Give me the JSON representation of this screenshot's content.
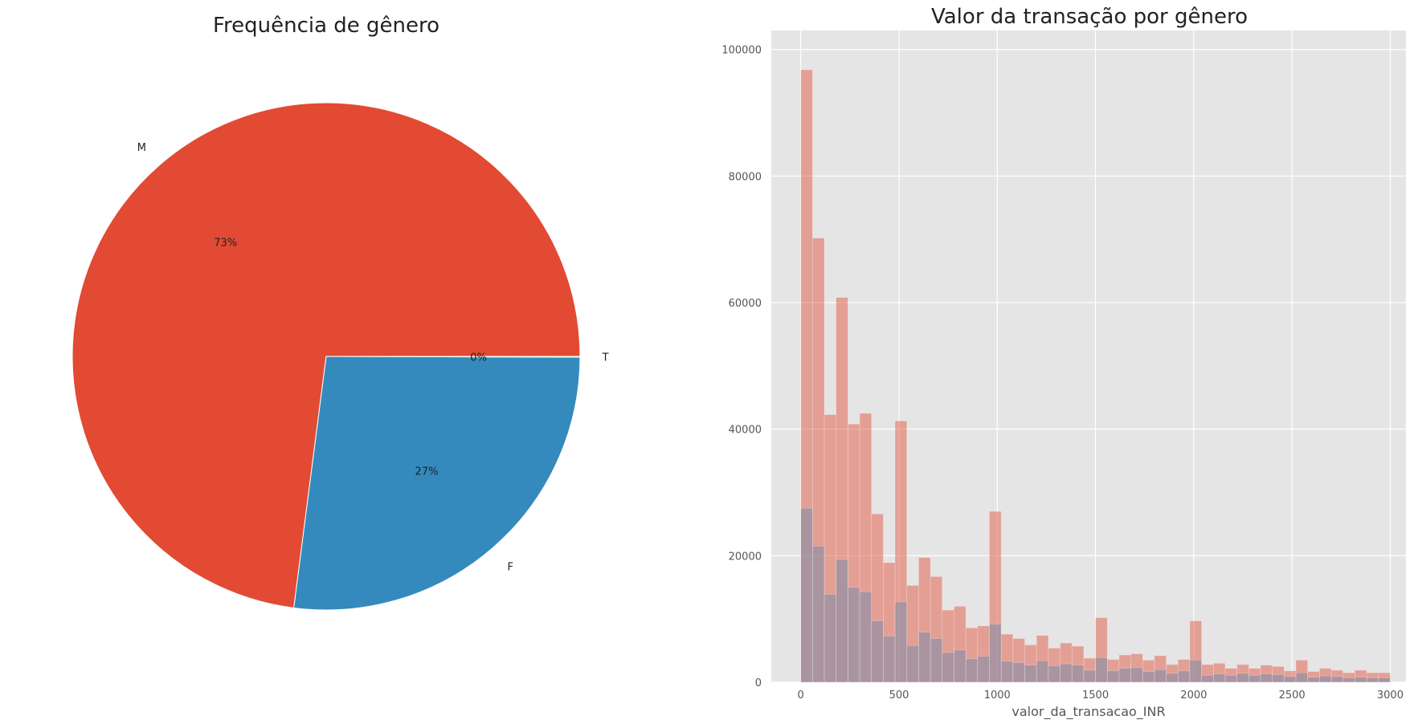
{
  "chart_data": [
    {
      "type": "pie",
      "title": "Frequência de gênero",
      "slices": [
        {
          "label": "M",
          "value": 73,
          "pct_label": "73%",
          "color": "#E24A33"
        },
        {
          "label": "F",
          "value": 27,
          "pct_label": "27%",
          "color": "#348ABD"
        },
        {
          "label": "T",
          "value": 0.05,
          "pct_label": "0%",
          "color": "#988ED5"
        }
      ]
    },
    {
      "type": "bar",
      "subtype": "histogram-overlay",
      "title": "Valor da transação por gênero",
      "xlabel": "valor_da_transacao_INR",
      "ylabel": "",
      "xlim": [
        -150,
        3080
      ],
      "ylim": [
        0,
        103000
      ],
      "xticks": [
        0,
        500,
        1000,
        1500,
        2000,
        2500,
        3000
      ],
      "yticks": [
        0,
        20000,
        40000,
        60000,
        80000,
        100000
      ],
      "grid": true,
      "bin_start": 0,
      "bin_width": 60,
      "series": [
        {
          "color": "#E24A33",
          "opacity": 0.45,
          "values": [
            96800,
            70200,
            42300,
            60800,
            40800,
            42500,
            26600,
            18900,
            41300,
            15300,
            19700,
            16700,
            11400,
            12000,
            8600,
            8900,
            27000,
            7600,
            6900,
            5900,
            7400,
            5400,
            6200,
            5700,
            3800,
            10200,
            3600,
            4300,
            4500,
            3500,
            4200,
            2800,
            3600,
            9700,
            2800,
            3000,
            2200,
            2800,
            2200,
            2700,
            2500,
            1800,
            3500,
            1700,
            2200,
            1900,
            1500,
            1900,
            1500,
            1500
          ]
        },
        {
          "color": "#7A8AAA",
          "opacity": 0.55,
          "values": [
            27500,
            21500,
            13900,
            19400,
            15000,
            14300,
            9700,
            7300,
            12700,
            5800,
            7900,
            6900,
            4700,
            5100,
            3700,
            4100,
            9200,
            3300,
            3100,
            2700,
            3400,
            2600,
            2900,
            2700,
            1900,
            3900,
            1800,
            2200,
            2300,
            1700,
            2000,
            1400,
            1800,
            3500,
            1100,
            1300,
            1100,
            1400,
            1100,
            1300,
            1200,
            900,
            1500,
            800,
            1000,
            900,
            700,
            800,
            700,
            700
          ]
        }
      ]
    }
  ]
}
